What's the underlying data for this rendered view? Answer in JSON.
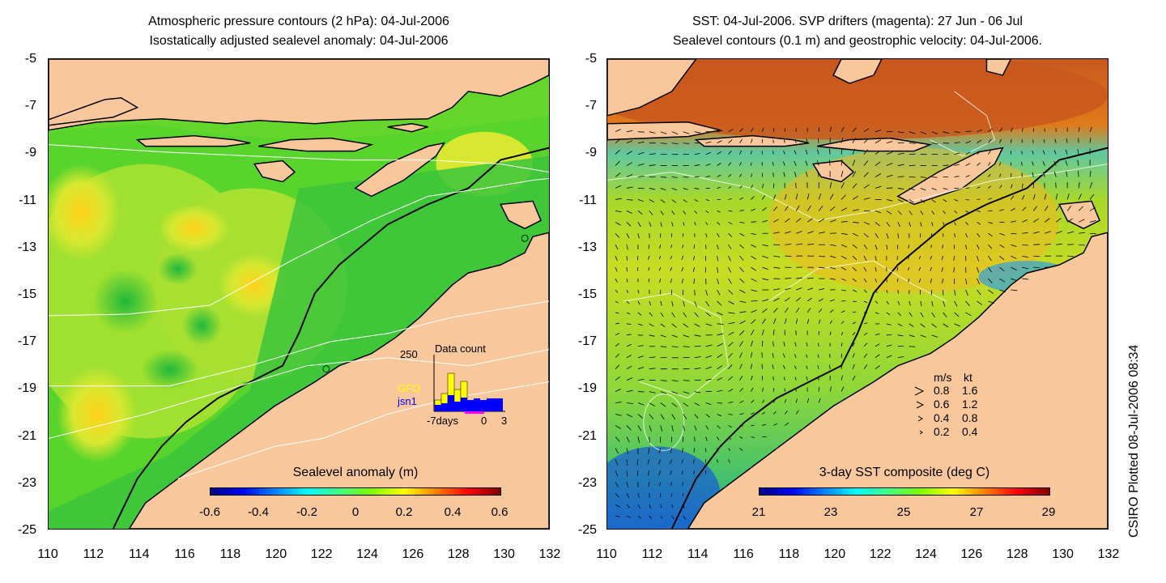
{
  "left_map": {
    "title_line1": "Atmospheric pressure contours (2 hPa): 04-Jul-2006",
    "title_line2": "Isostatically adjusted sealevel anomaly: 04-Jul-2006",
    "colorbar": {
      "label": "Sealevel anomaly (m)",
      "ticks": [
        "-0.6",
        "-0.4",
        "-0.2",
        "0",
        "0.2",
        "0.4",
        "0.6"
      ]
    },
    "data_count_inset": {
      "title": "Data count",
      "ymax_label": "250",
      "x_labels": [
        "-7days",
        "0",
        "3"
      ],
      "legend": [
        {
          "name": "GFO",
          "color": "#ffff00"
        },
        {
          "name": "jsn1",
          "color": "#0000ff"
        }
      ]
    }
  },
  "right_map": {
    "title_line1": "SST: 04-Jul-2006. SVP drifters (magenta): 27 Jun - 06 Jul",
    "title_line2": "Sealevel contours (0.1 m) and geostrophic velocity: 04-Jul-2006.",
    "colorbar": {
      "label": "3-day SST composite (deg C)",
      "ticks": [
        "21",
        "23",
        "25",
        "27",
        "29"
      ]
    },
    "velocity_key": {
      "header_ms": "m/s",
      "header_kt": "kt",
      "rows": [
        {
          "ms": "0.8",
          "kt": "1.6"
        },
        {
          "ms": "0.6",
          "kt": "1.2"
        },
        {
          "ms": "0.4",
          "kt": "0.8"
        },
        {
          "ms": "0.2",
          "kt": "0.4"
        }
      ]
    }
  },
  "y_axis_ticks": [
    "-5",
    "-7",
    "-9",
    "-11",
    "-13",
    "-15",
    "-17",
    "-19",
    "-21",
    "-23",
    "-25"
  ],
  "x_axis_ticks": [
    "110",
    "112",
    "114",
    "116",
    "118",
    "120",
    "122",
    "124",
    "126",
    "128",
    "130",
    "132"
  ],
  "credit": "CSIRO Plotted 08-Jul-2006 08:34",
  "colors": {
    "land": "#f8c89c",
    "sla_mid": "#33cc33",
    "sst_warm": "#d2691e",
    "sst_cool": "#7fd34a"
  }
}
